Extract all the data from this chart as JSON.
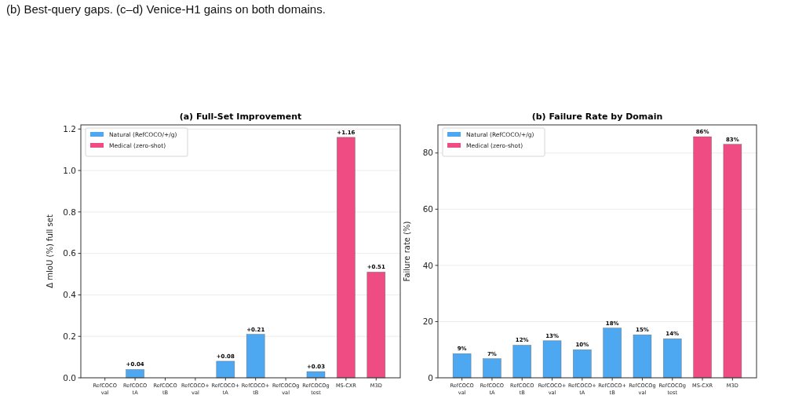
{
  "chart_data": [
    {
      "type": "bar",
      "title": "(a) Full-Set Improvement",
      "ylabel": "Δ mIoU (%) full set",
      "annotations": [
        "(b) Best-query gaps. (c–d) Venice-H1 gains on both domains."
      ],
      "categories": [
        "RefCOCO\nval",
        "RefCOCO\ntA",
        "RefCOCO\ntB",
        "RefCOCO+\nval",
        "RefCOCO+\ntA",
        "RefCOCO+\ntB",
        "RefCOCOg\nval",
        "RefCOCOg\ntest",
        "MS-CXR",
        "M3D"
      ],
      "series": [
        {
          "name": "Natural (RefCOCO/+/g)",
          "color": "#4ea8f1",
          "values": [
            null,
            0.04,
            null,
            null,
            0.08,
            0.21,
            null,
            0.03,
            null,
            null
          ],
          "value_labels": [
            null,
            "+0.04",
            null,
            null,
            "+0.08",
            "+0.21",
            null,
            "+0.03",
            null,
            null
          ]
        },
        {
          "name": "Medical (zero-shot)",
          "color": "#ee4c83",
          "values": [
            null,
            null,
            null,
            null,
            null,
            null,
            null,
            null,
            1.16,
            0.51
          ],
          "value_labels": [
            null,
            null,
            null,
            null,
            null,
            null,
            null,
            null,
            "+1.16",
            "+0.51"
          ]
        }
      ],
      "ylim": [
        0,
        1.22
      ],
      "yticks": [
        {
          "value": 0,
          "label": "0.0"
        },
        0.2,
        0.4,
        0.6,
        0.8,
        {
          "value": 1,
          "label": "1.0"
        },
        1.2
      ],
      "grid": "y",
      "legend": "top left"
    },
    {
      "type": "bar",
      "title": "(b) Failure Rate by Domain",
      "ylabel": "Failure rate (%)",
      "categories": [
        "RefCOCO\nval",
        "RefCOCO\ntA",
        "RefCOCO\ntB",
        "RefCOCO+\nval",
        "RefCOCO+\ntA",
        "RefCOCO+\ntB",
        "RefCOCOg\nval",
        "RefCOCOg\ntest",
        "MS-CXR",
        "M3D"
      ],
      "series": [
        {
          "name": "Natural (RefCOCO/+/g)",
          "color": "#4ea8f1",
          "values": [
            8.6,
            6.8,
            11.6,
            13.2,
            10.0,
            17.7,
            15.3,
            13.9,
            null,
            null
          ],
          "value_labels": [
            "9%",
            "7%",
            "12%",
            "13%",
            "10%",
            "18%",
            "15%",
            "14%",
            null,
            null
          ]
        },
        {
          "name": "Medical (zero-shot)",
          "color": "#ee4c83",
          "values": [
            null,
            null,
            null,
            null,
            null,
            null,
            null,
            null,
            85.8,
            83.1
          ],
          "value_labels": [
            null,
            null,
            null,
            null,
            null,
            null,
            null,
            null,
            "86%",
            "83%"
          ]
        }
      ],
      "ylim": [
        0,
        90
      ],
      "yticks": [
        0,
        20,
        40,
        60,
        80
      ],
      "grid": "y",
      "legend": "top left"
    }
  ]
}
